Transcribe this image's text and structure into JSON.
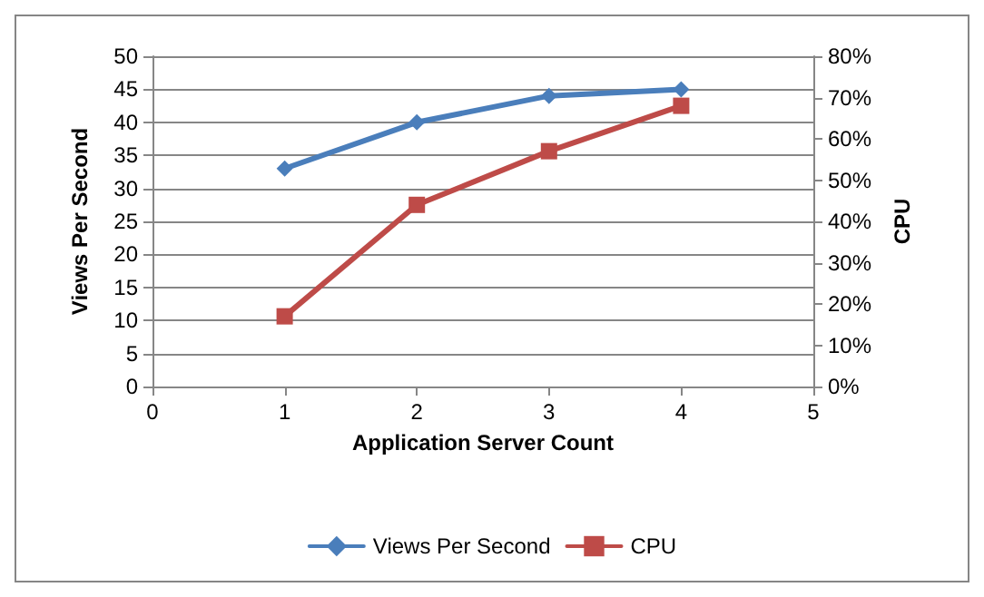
{
  "chart_data": {
    "type": "line",
    "xlabel": "Application Server Count",
    "ylabel": "Views Per Second",
    "y2label": "CPU",
    "x": [
      1,
      2,
      3,
      4
    ],
    "series": [
      {
        "name": "Views Per Second",
        "color": "#4a7ebb",
        "values": [
          33,
          40,
          44,
          45
        ],
        "marker": "diamond"
      },
      {
        "name": "CPU",
        "color": "#be4b48",
        "values": [
          17,
          44,
          57,
          68
        ],
        "marker": "square",
        "axis": "y2"
      }
    ],
    "xlim": [
      0,
      5
    ],
    "xticks": [
      0,
      1,
      2,
      3,
      4,
      5
    ],
    "ylim": [
      0,
      50
    ],
    "yticks": [
      0,
      5,
      10,
      15,
      20,
      25,
      30,
      35,
      40,
      45,
      50
    ],
    "y2lim": [
      0,
      80
    ],
    "y2ticks": [
      {
        "value": 0,
        "label": "0%"
      },
      {
        "value": 10,
        "label": "10%"
      },
      {
        "value": 20,
        "label": "20%"
      },
      {
        "value": 30,
        "label": "30%"
      },
      {
        "value": 40,
        "label": "40%"
      },
      {
        "value": 50,
        "label": "50%"
      },
      {
        "value": 60,
        "label": "60%"
      },
      {
        "value": 70,
        "label": "70%"
      },
      {
        "value": 80,
        "label": "80%"
      }
    ],
    "grid": "y",
    "legend": "bottom"
  }
}
